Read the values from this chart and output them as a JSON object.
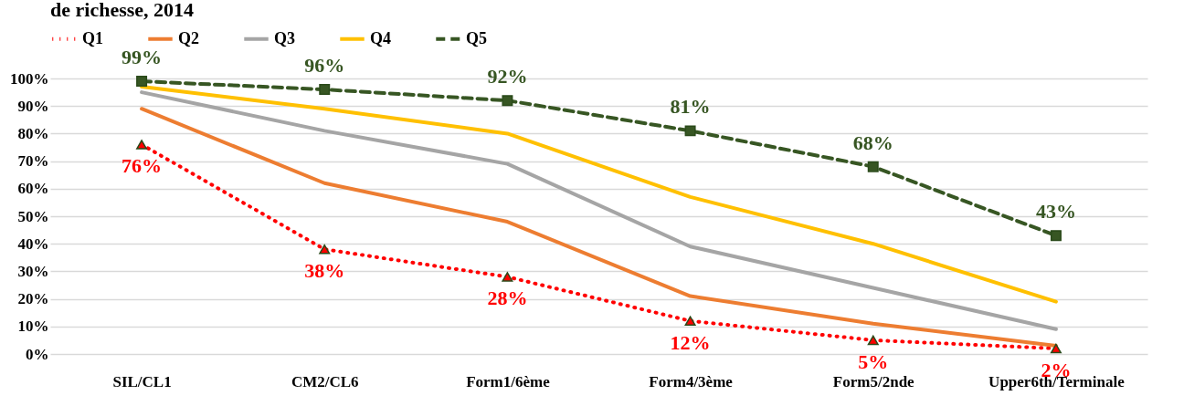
{
  "chart_data": {
    "type": "line",
    "title": "de richesse, 2014",
    "categories": [
      "SIL/CL1",
      "CM2/CL6",
      "Form1/6ème",
      "Form4/3ème",
      "Form5/2nde",
      "Upper6th/Terminale"
    ],
    "series": [
      {
        "name": "Q1",
        "color": "#ff0000",
        "values": [
          76,
          38,
          28,
          12,
          5,
          2
        ],
        "marker": "triangle",
        "line_style": "dotted",
        "value_labels": [
          "76%",
          "38%",
          "28%",
          "12%",
          "5%",
          "2%"
        ]
      },
      {
        "name": "Q2",
        "color": "#ed7d31",
        "values": [
          89,
          62,
          48,
          21,
          11,
          3
        ],
        "marker": "none",
        "line_style": "solid"
      },
      {
        "name": "Q3",
        "color": "#a5a5a5",
        "values": [
          95,
          81,
          69,
          39,
          24,
          9
        ],
        "marker": "none",
        "line_style": "solid"
      },
      {
        "name": "Q4",
        "color": "#ffc000",
        "values": [
          97,
          89,
          80,
          57,
          40,
          19
        ],
        "marker": "none",
        "line_style": "solid"
      },
      {
        "name": "Q5",
        "color": "#375623",
        "values": [
          99,
          96,
          92,
          81,
          68,
          43
        ],
        "marker": "square",
        "line_style": "dashed",
        "value_labels": [
          "99%",
          "96%",
          "92%",
          "81%",
          "68%",
          "43%"
        ]
      }
    ],
    "ylim": [
      0,
      100
    ],
    "yticks": [
      {
        "value": 0,
        "label": "0%"
      },
      {
        "value": 10,
        "label": "10%"
      },
      {
        "value": 20,
        "label": "20%"
      },
      {
        "value": 30,
        "label": "30%"
      },
      {
        "value": 40,
        "label": "40%"
      },
      {
        "value": 50,
        "label": "50%"
      },
      {
        "value": 60,
        "label": "60%"
      },
      {
        "value": 70,
        "label": "70%"
      },
      {
        "value": 80,
        "label": "80%"
      },
      {
        "value": 90,
        "label": "90%"
      },
      {
        "value": 100,
        "label": "100%"
      }
    ],
    "grid": "y",
    "legend": "top"
  }
}
